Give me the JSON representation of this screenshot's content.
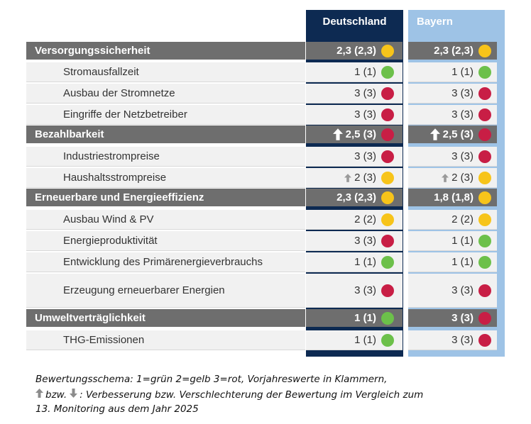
{
  "header": {
    "col_de": "Deutschland",
    "col_by": "Bayern"
  },
  "colors": {
    "green": "#6cc04a",
    "yellow": "#f7c41a",
    "red": "#c81e45",
    "de_column": "#0d2a52",
    "by_column": "#9ec3e6",
    "category_bg": "#6e6e6e",
    "row_bg": "#f1f1f1"
  },
  "rows": [
    {
      "kind": "cat",
      "label": "Versorgungssicherheit",
      "de": {
        "value": "2,3 (2,3)",
        "status": "yellow",
        "arrow": ""
      },
      "by": {
        "value": "2,3 (2,3)",
        "status": "yellow",
        "arrow": ""
      }
    },
    {
      "kind": "sub",
      "label": "Stromausfallzeit",
      "de": {
        "value": "1 (1)",
        "status": "green",
        "arrow": ""
      },
      "by": {
        "value": "1 (1)",
        "status": "green",
        "arrow": ""
      }
    },
    {
      "kind": "sub",
      "label": "Ausbau der Stromnetze",
      "de": {
        "value": "3 (3)",
        "status": "red",
        "arrow": ""
      },
      "by": {
        "value": "3 (3)",
        "status": "red",
        "arrow": ""
      }
    },
    {
      "kind": "sub",
      "label": "Eingriffe der Netzbetreiber",
      "de": {
        "value": "3 (3)",
        "status": "red",
        "arrow": ""
      },
      "by": {
        "value": "3 (3)",
        "status": "red",
        "arrow": ""
      }
    },
    {
      "kind": "cat",
      "label": "Bezahlbarkeit",
      "de": {
        "value": "2,5 (3)",
        "status": "red",
        "arrow": "up"
      },
      "by": {
        "value": "2,5 (3)",
        "status": "red",
        "arrow": "up"
      }
    },
    {
      "kind": "sub",
      "label": "Industriestrompreise",
      "de": {
        "value": "3 (3)",
        "status": "red",
        "arrow": ""
      },
      "by": {
        "value": "3 (3)",
        "status": "red",
        "arrow": ""
      }
    },
    {
      "kind": "sub",
      "label": "Haushaltsstrompreise",
      "de": {
        "value": "2 (3)",
        "status": "yellow",
        "arrow": "up"
      },
      "by": {
        "value": "2 (3)",
        "status": "yellow",
        "arrow": "up"
      }
    },
    {
      "kind": "cat",
      "label": "Erneuerbare und Energieeffizienz",
      "de": {
        "value": "2,3 (2,3)",
        "status": "yellow",
        "arrow": ""
      },
      "by": {
        "value": "1,8 (1,8)",
        "status": "yellow",
        "arrow": ""
      }
    },
    {
      "kind": "sub",
      "label": "Ausbau Wind & PV",
      "de": {
        "value": "2 (2)",
        "status": "yellow",
        "arrow": ""
      },
      "by": {
        "value": "2 (2)",
        "status": "yellow",
        "arrow": ""
      }
    },
    {
      "kind": "sub",
      "label": "Energieproduktivität",
      "de": {
        "value": "3 (3)",
        "status": "red",
        "arrow": ""
      },
      "by": {
        "value": "1 (1)",
        "status": "green",
        "arrow": ""
      }
    },
    {
      "kind": "sub",
      "label": "Entwicklung des Primärenergieverbrauchs",
      "de": {
        "value": "1 (1)",
        "status": "green",
        "arrow": ""
      },
      "by": {
        "value": "1 (1)",
        "status": "green",
        "arrow": ""
      }
    },
    {
      "kind": "sub",
      "label": "Erzeugung erneuerbarer Energien",
      "de": {
        "value": "3 (3)",
        "status": "red",
        "arrow": ""
      },
      "by": {
        "value": "3 (3)",
        "status": "red",
        "arrow": ""
      }
    },
    {
      "kind": "cat",
      "label": "Umweltverträglichkeit",
      "de": {
        "value": "1 (1)",
        "status": "green",
        "arrow": ""
      },
      "by": {
        "value": "3 (3)",
        "status": "red",
        "arrow": ""
      }
    },
    {
      "kind": "sub",
      "label": "THG-Emissionen",
      "de": {
        "value": "1 (1)",
        "status": "green",
        "arrow": ""
      },
      "by": {
        "value": "3 (3)",
        "status": "red",
        "arrow": ""
      }
    }
  ],
  "legend": {
    "line1": "Bewertungsschema: 1=grün 2=gelb 3=rot, Vorjahreswerte in Klammern,",
    "line2_bzw": "bzw.",
    "line2_rest": ": Verbesserung bzw. Verschlechterung der Bewertung im Vergleich zum",
    "line3": "13. Monitoring aus dem Jahr 2025"
  }
}
